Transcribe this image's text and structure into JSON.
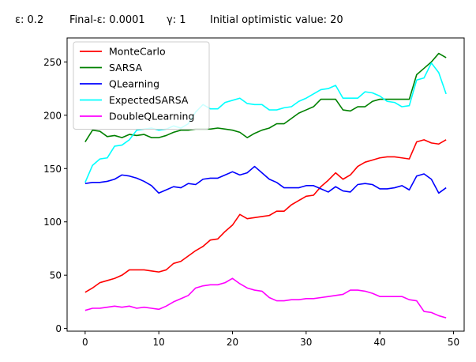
{
  "header": {
    "epsilon": "ε: 0.2",
    "final_epsilon": "Final-ε: 0.0001",
    "gamma": "γ: 1",
    "initial_value": "Initial optimistic value: 20"
  },
  "chart_data": {
    "type": "line",
    "title": "",
    "xlabel": "",
    "ylabel": "",
    "xlim": [
      -2.45,
      51.45
    ],
    "ylim": [
      -2.5,
      272.5
    ],
    "x_ticks": [
      0,
      10,
      20,
      30,
      40,
      50
    ],
    "y_ticks": [
      0,
      50,
      100,
      150,
      200,
      250
    ],
    "grid": false,
    "legend_position": "upper-left",
    "x": [
      0,
      1,
      2,
      3,
      4,
      5,
      6,
      7,
      8,
      9,
      10,
      11,
      12,
      13,
      14,
      15,
      16,
      17,
      18,
      19,
      20,
      21,
      22,
      23,
      24,
      25,
      26,
      27,
      28,
      29,
      30,
      31,
      32,
      33,
      34,
      35,
      36,
      37,
      38,
      39,
      40,
      41,
      42,
      43,
      44,
      45,
      46,
      47,
      48,
      49
    ],
    "series": [
      {
        "name": "MonteCarlo",
        "color": "#ff0000",
        "values": [
          34,
          38,
          43,
          45,
          47,
          50,
          55,
          55,
          55,
          54,
          53,
          55,
          61,
          63,
          68,
          73,
          77,
          83,
          84,
          91,
          97,
          107,
          103,
          104,
          105,
          106,
          110,
          110,
          116,
          120,
          124,
          125,
          133,
          139,
          146,
          140,
          144,
          152,
          156,
          158,
          160,
          161,
          161,
          160,
          159,
          175,
          177,
          174,
          173,
          177
        ]
      },
      {
        "name": "SARSA",
        "color": "#008000",
        "values": [
          175,
          186,
          185,
          180,
          181,
          179,
          182,
          181,
          182,
          179,
          179,
          181,
          184,
          186,
          186,
          187,
          187,
          187,
          188,
          187,
          186,
          184,
          179,
          183,
          186,
          188,
          192,
          192,
          197,
          202,
          205,
          208,
          215,
          215,
          215,
          205,
          204,
          208,
          208,
          213,
          215,
          215,
          215,
          215,
          215,
          238,
          244,
          250,
          258,
          254
        ]
      },
      {
        "name": "QLearning",
        "color": "#0000ff",
        "values": [
          136,
          137,
          137,
          138,
          140,
          144,
          143,
          141,
          138,
          134,
          127,
          130,
          133,
          132,
          136,
          135,
          140,
          141,
          141,
          144,
          147,
          144,
          146,
          152,
          146,
          140,
          137,
          132,
          132,
          132,
          134,
          134,
          131,
          128,
          133,
          129,
          128,
          135,
          136,
          135,
          131,
          131,
          132,
          134,
          130,
          143,
          145,
          140,
          127,
          132
        ]
      },
      {
        "name": "ExpectedSARSA",
        "color": "#00ffff",
        "values": [
          137,
          153,
          159,
          160,
          171,
          172,
          177,
          186,
          187,
          188,
          186,
          187,
          190,
          188,
          192,
          203,
          210,
          206,
          206,
          212,
          214,
          216,
          211,
          210,
          210,
          205,
          205,
          207,
          208,
          213,
          216,
          220,
          224,
          225,
          228,
          216,
          216,
          216,
          222,
          221,
          218,
          213,
          212,
          208,
          209,
          233,
          235,
          249,
          240,
          220
        ]
      },
      {
        "name": "DoubleQLearning",
        "color": "#ff00ff",
        "values": [
          17,
          19,
          19,
          20,
          21,
          20,
          21,
          19,
          20,
          19,
          18,
          21,
          25,
          28,
          31,
          38,
          40,
          41,
          41,
          43,
          47,
          42,
          38,
          36,
          35,
          29,
          26,
          26,
          27,
          27,
          28,
          28,
          29,
          30,
          31,
          32,
          36,
          36,
          35,
          33,
          30,
          30,
          30,
          30,
          27,
          26,
          16,
          15,
          12,
          10
        ]
      }
    ]
  }
}
